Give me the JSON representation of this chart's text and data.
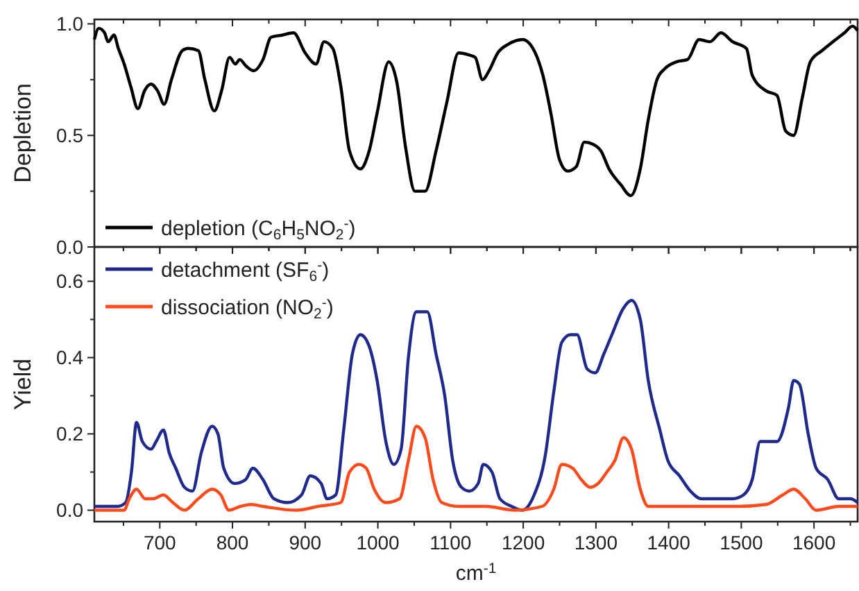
{
  "chart_data": [
    {
      "type": "line",
      "ylabel": "Depletion",
      "legend": "bottom left",
      "tick_labels": "y",
      "xlim": [
        610,
        1660
      ],
      "ylim": [
        0,
        1.02
      ],
      "xticks": [
        {
          "value": 650,
          "label": null
        },
        700,
        {
          "value": 750,
          "label": null
        },
        800,
        {
          "value": 850,
          "label": null
        },
        900,
        {
          "value": 950,
          "label": null
        },
        1000,
        {
          "value": 1050,
          "label": null
        },
        1100,
        {
          "value": 1150,
          "label": null
        },
        1200,
        {
          "value": 1250,
          "label": null
        },
        1300,
        {
          "value": 1350,
          "label": null
        },
        1400,
        {
          "value": 1450,
          "label": null
        },
        1500,
        {
          "value": 1550,
          "label": null
        },
        1600,
        {
          "value": 1650,
          "label": null
        }
      ],
      "yticks": [
        {
          "value": 0,
          "label": "0.0"
        },
        {
          "value": 0.25,
          "label": null
        },
        {
          "value": 0.5,
          "label": "0.5"
        },
        {
          "value": 0.75,
          "label": null
        },
        {
          "value": 1,
          "label": "1.0"
        }
      ],
      "series": [
        {
          "name": "depletion (C$_{6}$H$_{5}$NO$_{2}$$^{-}$)",
          "color": "#000000",
          "x": [
            610,
            616,
            624,
            629,
            637,
            643,
            651,
            660,
            670,
            679,
            688,
            697,
            706,
            716,
            731,
            739,
            753,
            762,
            775,
            785,
            796,
            804,
            810,
            819,
            829,
            842,
            853,
            869,
            884,
            900,
            915,
            926,
            938,
            949,
            961,
            976,
            988,
            999,
            1015,
            1026,
            1038,
            1051,
            1065,
            1080,
            1095,
            1111,
            1126,
            1134,
            1144,
            1153,
            1165,
            1180,
            1199,
            1215,
            1227,
            1238,
            1250,
            1261,
            1273,
            1284,
            1296,
            1307,
            1318,
            1334,
            1348,
            1361,
            1372,
            1384,
            1395,
            1411,
            1426,
            1442,
            1457,
            1472,
            1488,
            1507,
            1515,
            1534,
            1549,
            1561,
            1572,
            1584,
            1595,
            1611,
            1626,
            1642,
            1653,
            1660
          ],
          "values": [
            0.93,
            0.98,
            0.96,
            0.92,
            0.95,
            0.89,
            0.82,
            0.72,
            0.62,
            0.7,
            0.73,
            0.7,
            0.64,
            0.75,
            0.88,
            0.89,
            0.88,
            0.75,
            0.61,
            0.7,
            0.85,
            0.82,
            0.84,
            0.81,
            0.79,
            0.84,
            0.94,
            0.95,
            0.96,
            0.87,
            0.82,
            0.92,
            0.89,
            0.72,
            0.43,
            0.35,
            0.43,
            0.6,
            0.83,
            0.74,
            0.45,
            0.25,
            0.25,
            0.43,
            0.65,
            0.87,
            0.86,
            0.85,
            0.75,
            0.79,
            0.87,
            0.91,
            0.93,
            0.88,
            0.77,
            0.6,
            0.39,
            0.34,
            0.36,
            0.47,
            0.46,
            0.43,
            0.35,
            0.28,
            0.23,
            0.35,
            0.57,
            0.75,
            0.8,
            0.83,
            0.84,
            0.93,
            0.92,
            0.96,
            0.92,
            0.89,
            0.77,
            0.7,
            0.68,
            0.52,
            0.5,
            0.67,
            0.83,
            0.88,
            0.92,
            0.96,
            0.99,
            0.97
          ]
        }
      ]
    },
    {
      "type": "line",
      "ylabel": "Yield",
      "xlabel": "cm$^{-1}$",
      "legend": "top left",
      "xlim": [
        610,
        1660
      ],
      "ylim": [
        -0.03,
        0.69
      ],
      "xticks": [
        {
          "value": 650,
          "label": null
        },
        700,
        {
          "value": 750,
          "label": null
        },
        800,
        {
          "value": 850,
          "label": null
        },
        900,
        {
          "value": 950,
          "label": null
        },
        1000,
        {
          "value": 1050,
          "label": null
        },
        1100,
        {
          "value": 1150,
          "label": null
        },
        1200,
        {
          "value": 1250,
          "label": null
        },
        1300,
        {
          "value": 1350,
          "label": null
        },
        1400,
        {
          "value": 1450,
          "label": null
        },
        1500,
        {
          "value": 1550,
          "label": null
        },
        1600,
        {
          "value": 1650,
          "label": null
        }
      ],
      "yticks": [
        {
          "value": 0,
          "label": "0.0"
        },
        {
          "value": 0.1,
          "label": null
        },
        {
          "value": 0.2,
          "label": "0.2"
        },
        {
          "value": 0.3,
          "label": null
        },
        {
          "value": 0.4,
          "label": "0.4"
        },
        {
          "value": 0.5,
          "label": null
        },
        {
          "value": 0.6,
          "label": "0.6"
        }
      ],
      "series": [
        {
          "name": "detachment (SF$_{6}$$^{-}$)",
          "color": "#1f2a8c",
          "x": [
            610,
            642,
            653,
            661,
            668,
            676,
            688,
            695,
            705,
            713,
            722,
            734,
            745,
            757,
            772,
            780,
            788,
            803,
            818,
            828,
            842,
            857,
            876,
            895,
            907,
            922,
            930,
            942,
            953,
            965,
            976,
            988,
            999,
            1011,
            1022,
            1032,
            1042,
            1053,
            1068,
            1080,
            1092,
            1103,
            1115,
            1126,
            1138,
            1145,
            1157,
            1168,
            1184,
            1199,
            1215,
            1230,
            1242,
            1253,
            1265,
            1274,
            1288,
            1299,
            1311,
            1322,
            1338,
            1349,
            1361,
            1372,
            1388,
            1399,
            1415,
            1430,
            1445,
            1457,
            1472,
            1488,
            1503,
            1515,
            1526,
            1538,
            1549,
            1565,
            1572,
            1580,
            1592,
            1603,
            1619,
            1634,
            1650,
            1660
          ],
          "values": [
            0.01,
            0.01,
            0.02,
            0.1,
            0.23,
            0.18,
            0.16,
            0.18,
            0.21,
            0.15,
            0.11,
            0.06,
            0.05,
            0.15,
            0.22,
            0.2,
            0.11,
            0.07,
            0.08,
            0.11,
            0.08,
            0.03,
            0.02,
            0.04,
            0.09,
            0.07,
            0.03,
            0.04,
            0.21,
            0.41,
            0.46,
            0.43,
            0.34,
            0.18,
            0.12,
            0.16,
            0.4,
            0.52,
            0.52,
            0.41,
            0.3,
            0.13,
            0.06,
            0.05,
            0.07,
            0.12,
            0.1,
            0.03,
            0.01,
            0.0,
            0.04,
            0.14,
            0.31,
            0.44,
            0.46,
            0.46,
            0.37,
            0.36,
            0.41,
            0.46,
            0.53,
            0.55,
            0.5,
            0.34,
            0.21,
            0.13,
            0.09,
            0.05,
            0.03,
            0.03,
            0.03,
            0.03,
            0.04,
            0.08,
            0.18,
            0.18,
            0.18,
            0.27,
            0.34,
            0.33,
            0.2,
            0.11,
            0.08,
            0.03,
            0.03,
            0.02
          ]
        },
        {
          "name": "dissociation (NO$_{2}$$^{-}$)",
          "color": "#ff4a1c",
          "x": [
            610,
            651,
            658,
            668,
            680,
            691,
            705,
            718,
            734,
            753,
            772,
            784,
            795,
            811,
            826,
            842,
            888,
            918,
            949,
            961,
            974,
            984,
            995,
            1011,
            1030,
            1042,
            1053,
            1065,
            1076,
            1088,
            1111,
            1149,
            1188,
            1226,
            1242,
            1253,
            1268,
            1280,
            1292,
            1303,
            1315,
            1326,
            1338,
            1349,
            1361,
            1372,
            1418,
            1495,
            1534,
            1557,
            1572,
            1588,
            1603,
            1634,
            1660
          ],
          "values": [
            0.0,
            0.0,
            0.03,
            0.055,
            0.03,
            0.03,
            0.04,
            0.02,
            0.0,
            0.03,
            0.055,
            0.04,
            0.0,
            0.01,
            0.015,
            0.01,
            0.0,
            0.01,
            0.02,
            0.1,
            0.12,
            0.11,
            0.055,
            0.02,
            0.03,
            0.13,
            0.22,
            0.19,
            0.08,
            0.02,
            0.01,
            0.01,
            0.0,
            0.01,
            0.055,
            0.12,
            0.11,
            0.08,
            0.06,
            0.07,
            0.1,
            0.13,
            0.19,
            0.16,
            0.055,
            0.01,
            0.01,
            0.01,
            0.015,
            0.04,
            0.055,
            0.03,
            0.0,
            0.01,
            0.01
          ]
        }
      ]
    }
  ]
}
